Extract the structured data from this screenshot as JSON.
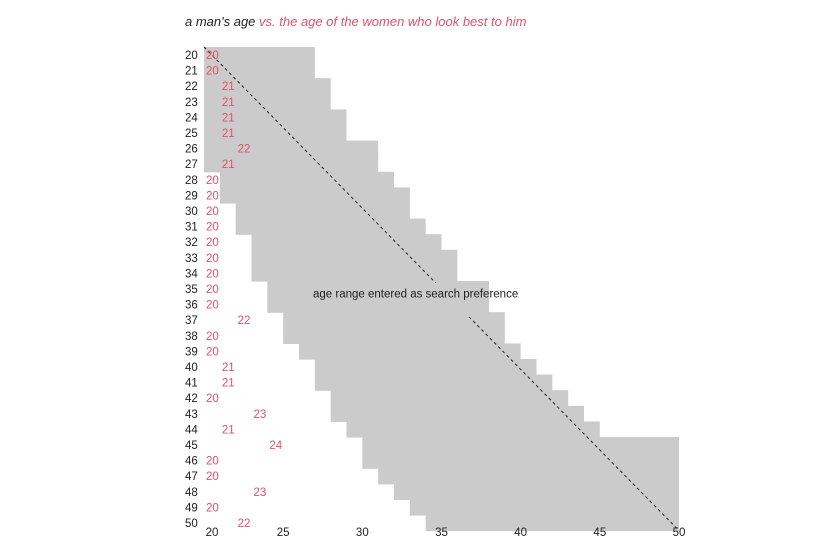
{
  "colors": {
    "band": "#cbcbcb",
    "accent": "#e0526a",
    "text": "#222222",
    "diagonal": "#222222"
  },
  "chart_data": {
    "type": "heatmap",
    "title_part1": "a man's age",
    "title_part2": "vs. the age of the women who look best to him",
    "annotation": "age range entered as search preference",
    "xlim": [
      20,
      50
    ],
    "ylim": [
      20,
      50
    ],
    "x_ticks": [
      20,
      25,
      30,
      35,
      40,
      45,
      50
    ],
    "y_ticks": [
      20,
      21,
      22,
      23,
      24,
      25,
      26,
      27,
      28,
      29,
      30,
      31,
      32,
      33,
      34,
      35,
      36,
      37,
      38,
      39,
      40,
      41,
      42,
      43,
      44,
      45,
      46,
      47,
      48,
      49,
      50
    ],
    "mans_age": [
      20,
      21,
      22,
      23,
      24,
      25,
      26,
      27,
      28,
      29,
      30,
      31,
      32,
      33,
      34,
      35,
      36,
      37,
      38,
      39,
      40,
      41,
      42,
      43,
      44,
      45,
      46,
      47,
      48,
      49,
      50
    ],
    "best_looking_age": [
      20,
      20,
      21,
      21,
      21,
      21,
      22,
      21,
      20,
      20,
      20,
      20,
      20,
      20,
      20,
      20,
      20,
      22,
      20,
      20,
      21,
      21,
      20,
      23,
      21,
      24,
      20,
      20,
      23,
      20,
      22
    ],
    "search_range": [
      {
        "man": 20,
        "min": 20,
        "max": 27
      },
      {
        "man": 21,
        "min": 20,
        "max": 27
      },
      {
        "man": 22,
        "min": 20,
        "max": 28
      },
      {
        "man": 23,
        "min": 20,
        "max": 28
      },
      {
        "man": 24,
        "min": 20,
        "max": 29
      },
      {
        "man": 25,
        "min": 20,
        "max": 29
      },
      {
        "man": 26,
        "min": 20,
        "max": 31
      },
      {
        "man": 27,
        "min": 20,
        "max": 31
      },
      {
        "man": 28,
        "min": 21,
        "max": 32
      },
      {
        "man": 29,
        "min": 21,
        "max": 33
      },
      {
        "man": 30,
        "min": 22,
        "max": 33
      },
      {
        "man": 31,
        "min": 22,
        "max": 34
      },
      {
        "man": 32,
        "min": 23,
        "max": 35
      },
      {
        "man": 33,
        "min": 23,
        "max": 36
      },
      {
        "man": 34,
        "min": 23,
        "max": 36
      },
      {
        "man": 35,
        "min": 24,
        "max": 38
      },
      {
        "man": 36,
        "min": 24,
        "max": 38
      },
      {
        "man": 37,
        "min": 25,
        "max": 39
      },
      {
        "man": 38,
        "min": 25,
        "max": 39
      },
      {
        "man": 39,
        "min": 26,
        "max": 40
      },
      {
        "man": 40,
        "min": 27,
        "max": 41
      },
      {
        "man": 41,
        "min": 27,
        "max": 42
      },
      {
        "man": 42,
        "min": 28,
        "max": 43
      },
      {
        "man": 43,
        "min": 28,
        "max": 44
      },
      {
        "man": 44,
        "min": 29,
        "max": 45
      },
      {
        "man": 45,
        "min": 30,
        "max": 50
      },
      {
        "man": 46,
        "min": 30,
        "max": 50
      },
      {
        "man": 47,
        "min": 31,
        "max": 50
      },
      {
        "man": 48,
        "min": 32,
        "max": 50
      },
      {
        "man": 49,
        "min": 33,
        "max": 50
      },
      {
        "man": 50,
        "min": 34,
        "max": 50
      }
    ],
    "diagonal": "dashed y = x reference line",
    "grid": false,
    "legend": false
  }
}
